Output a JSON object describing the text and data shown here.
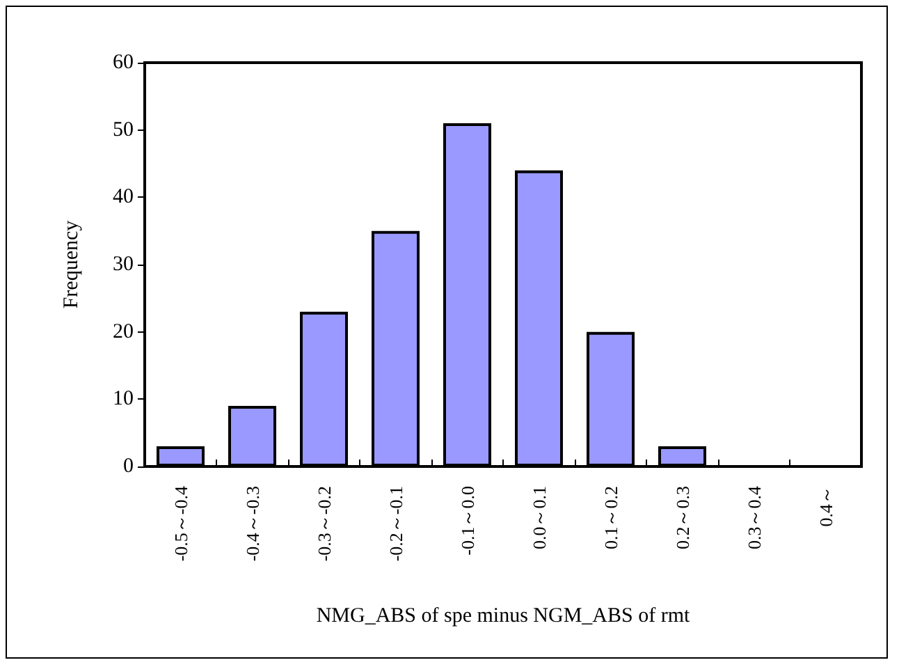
{
  "chart_data": {
    "type": "bar",
    "xlabel": "NMG_ABS of spe minus NGM_ABS of rmt",
    "ylabel": "Frequency",
    "categories": [
      "-0.5～-0.4",
      "-0.4～-0.3",
      "-0.3～-0.2",
      "-0.2～-0.1",
      "-0.1～0.0",
      "0.0～0.1",
      "0.1～0.2",
      "0.2～0.3",
      "0.3～0.4",
      "0.4～"
    ],
    "values": [
      3,
      9,
      23,
      35,
      51,
      44,
      20,
      3,
      0,
      0
    ],
    "color": "#9999ff",
    "ylim": [
      0,
      60
    ],
    "yticks": [
      0,
      10,
      20,
      30,
      40,
      50,
      60
    ],
    "grid": false
  }
}
